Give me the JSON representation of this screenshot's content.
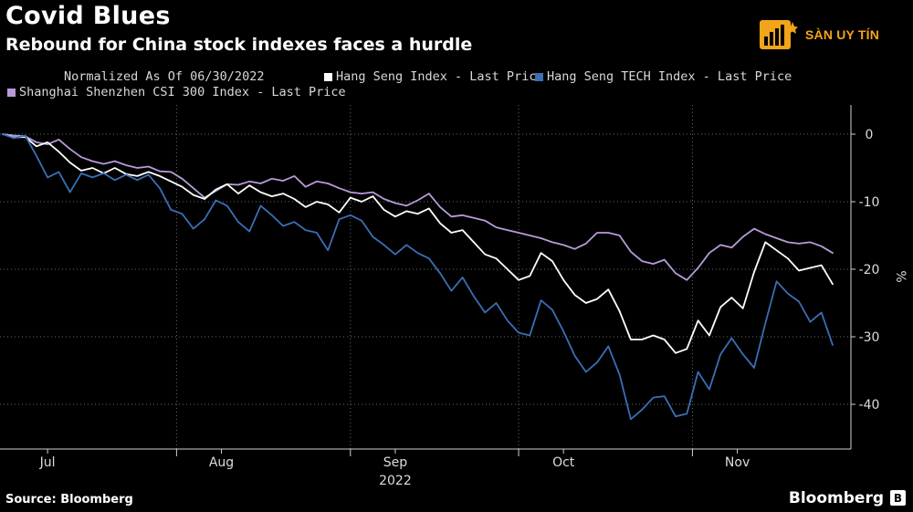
{
  "header": {
    "title": "Covid Blues",
    "subtitle": "Rebound for China stock indexes faces a hurdle"
  },
  "logo": {
    "text": "SÀN UY TÍN"
  },
  "legend": {
    "note": "Normalized As Of 06/30/2022",
    "items": [
      {
        "label": "Hang Seng Index - Last Price",
        "color": "#ffffff"
      },
      {
        "label": "Hang Seng TECH Index - Last Price",
        "color": "#3a6fb5"
      },
      {
        "label": "Shanghai Shenzhen CSI 300 Index - Last Price",
        "color": "#b79bd9"
      }
    ]
  },
  "footer": {
    "source": "Source: Bloomberg",
    "brand": "Bloomberg",
    "icon_glyph": "B"
  },
  "chart_data": {
    "type": "line",
    "x_range": [
      "2022-06-30",
      "2022-11-25"
    ],
    "x_ticks": [
      {
        "date": "2022-07-08",
        "label": "Jul"
      },
      {
        "date": "2022-08-08",
        "label": "Aug"
      },
      {
        "date": "2022-09-08",
        "label": "Sep"
      },
      {
        "date": "2022-10-08",
        "label": "Oct"
      },
      {
        "date": "2022-11-08",
        "label": "Nov"
      }
    ],
    "x_sublabel": "2022",
    "x_sublabel_date": "2022-09-08",
    "month_boundaries": [
      "2022-07-31",
      "2022-08-31",
      "2022-09-30",
      "2022-10-31"
    ],
    "ylabel": "%",
    "ylim": [
      -46,
      4
    ],
    "yticks": [
      0,
      -10,
      -20,
      -30,
      -40
    ],
    "grid": true,
    "series": [
      {
        "name": "Shanghai Shenzhen CSI 300 Index - Last Price",
        "color": "#b79bd9",
        "points": [
          [
            "2022-06-30",
            0
          ],
          [
            "2022-07-02",
            -0.2
          ],
          [
            "2022-07-04",
            -0.3
          ],
          [
            "2022-07-06",
            -1.2
          ],
          [
            "2022-07-08",
            -1.5
          ],
          [
            "2022-07-10",
            -0.8
          ],
          [
            "2022-07-12",
            -2.2
          ],
          [
            "2022-07-14",
            -3.4
          ],
          [
            "2022-07-16",
            -4.0
          ],
          [
            "2022-07-18",
            -4.4
          ],
          [
            "2022-07-20",
            -4.0
          ],
          [
            "2022-07-22",
            -4.6
          ],
          [
            "2022-07-24",
            -5.0
          ],
          [
            "2022-07-26",
            -4.8
          ],
          [
            "2022-07-28",
            -5.5
          ],
          [
            "2022-07-30",
            -5.6
          ],
          [
            "2022-08-01",
            -6.6
          ],
          [
            "2022-08-03",
            -8.0
          ],
          [
            "2022-08-05",
            -9.4
          ],
          [
            "2022-08-07",
            -8.4
          ],
          [
            "2022-08-09",
            -7.4
          ],
          [
            "2022-08-11",
            -7.5
          ],
          [
            "2022-08-13",
            -7.0
          ],
          [
            "2022-08-15",
            -7.3
          ],
          [
            "2022-08-17",
            -6.6
          ],
          [
            "2022-08-19",
            -6.9
          ],
          [
            "2022-08-21",
            -6.2
          ],
          [
            "2022-08-23",
            -7.8
          ],
          [
            "2022-08-25",
            -7.0
          ],
          [
            "2022-08-27",
            -7.3
          ],
          [
            "2022-08-29",
            -8.0
          ],
          [
            "2022-08-31",
            -8.6
          ],
          [
            "2022-09-02",
            -8.8
          ],
          [
            "2022-09-04",
            -8.6
          ],
          [
            "2022-09-06",
            -9.6
          ],
          [
            "2022-09-08",
            -10.2
          ],
          [
            "2022-09-10",
            -10.6
          ],
          [
            "2022-09-12",
            -9.8
          ],
          [
            "2022-09-14",
            -8.8
          ],
          [
            "2022-09-16",
            -10.8
          ],
          [
            "2022-09-18",
            -12.2
          ],
          [
            "2022-09-20",
            -12.0
          ],
          [
            "2022-09-22",
            -12.4
          ],
          [
            "2022-09-24",
            -12.8
          ],
          [
            "2022-09-26",
            -13.8
          ],
          [
            "2022-09-28",
            -14.2
          ],
          [
            "2022-09-30",
            -14.6
          ],
          [
            "2022-10-02",
            -15.0
          ],
          [
            "2022-10-04",
            -15.4
          ],
          [
            "2022-10-06",
            -16.0
          ],
          [
            "2022-10-08",
            -16.4
          ],
          [
            "2022-10-10",
            -17.0
          ],
          [
            "2022-10-12",
            -16.2
          ],
          [
            "2022-10-14",
            -14.6
          ],
          [
            "2022-10-16",
            -14.6
          ],
          [
            "2022-10-18",
            -15.0
          ],
          [
            "2022-10-20",
            -17.4
          ],
          [
            "2022-10-22",
            -18.8
          ],
          [
            "2022-10-24",
            -19.2
          ],
          [
            "2022-10-26",
            -18.6
          ],
          [
            "2022-10-28",
            -20.6
          ],
          [
            "2022-10-30",
            -21.6
          ],
          [
            "2022-11-01",
            -19.8
          ],
          [
            "2022-11-03",
            -17.6
          ],
          [
            "2022-11-05",
            -16.4
          ],
          [
            "2022-11-07",
            -16.8
          ],
          [
            "2022-11-09",
            -15.2
          ],
          [
            "2022-11-11",
            -14.0
          ],
          [
            "2022-11-13",
            -14.8
          ],
          [
            "2022-11-15",
            -15.4
          ],
          [
            "2022-11-17",
            -16.0
          ],
          [
            "2022-11-19",
            -16.2
          ],
          [
            "2022-11-21",
            -16.0
          ],
          [
            "2022-11-23",
            -16.6
          ],
          [
            "2022-11-25",
            -17.6
          ]
        ]
      },
      {
        "name": "Hang Seng Index - Last Price",
        "color": "#ffffff",
        "points": [
          [
            "2022-06-30",
            0
          ],
          [
            "2022-07-02",
            -0.5
          ],
          [
            "2022-07-04",
            -0.4
          ],
          [
            "2022-07-06",
            -1.8
          ],
          [
            "2022-07-08",
            -1.2
          ],
          [
            "2022-07-10",
            -2.6
          ],
          [
            "2022-07-12",
            -4.2
          ],
          [
            "2022-07-14",
            -5.4
          ],
          [
            "2022-07-16",
            -5.0
          ],
          [
            "2022-07-18",
            -5.8
          ],
          [
            "2022-07-20",
            -5.0
          ],
          [
            "2022-07-22",
            -5.9
          ],
          [
            "2022-07-24",
            -6.2
          ],
          [
            "2022-07-26",
            -5.6
          ],
          [
            "2022-07-28",
            -6.2
          ],
          [
            "2022-07-30",
            -7.0
          ],
          [
            "2022-08-01",
            -7.8
          ],
          [
            "2022-08-03",
            -9.0
          ],
          [
            "2022-08-05",
            -9.6
          ],
          [
            "2022-08-07",
            -8.2
          ],
          [
            "2022-08-09",
            -7.4
          ],
          [
            "2022-08-11",
            -8.8
          ],
          [
            "2022-08-13",
            -7.6
          ],
          [
            "2022-08-15",
            -8.6
          ],
          [
            "2022-08-17",
            -9.2
          ],
          [
            "2022-08-19",
            -8.8
          ],
          [
            "2022-08-21",
            -9.6
          ],
          [
            "2022-08-23",
            -10.8
          ],
          [
            "2022-08-25",
            -10.0
          ],
          [
            "2022-08-27",
            -10.4
          ],
          [
            "2022-08-29",
            -11.6
          ],
          [
            "2022-08-31",
            -9.4
          ],
          [
            "2022-09-02",
            -10.0
          ],
          [
            "2022-09-04",
            -9.2
          ],
          [
            "2022-09-06",
            -11.2
          ],
          [
            "2022-09-08",
            -12.2
          ],
          [
            "2022-09-10",
            -11.4
          ],
          [
            "2022-09-12",
            -11.8
          ],
          [
            "2022-09-14",
            -11.0
          ],
          [
            "2022-09-16",
            -13.2
          ],
          [
            "2022-09-18",
            -14.6
          ],
          [
            "2022-09-20",
            -14.2
          ],
          [
            "2022-09-22",
            -16.0
          ],
          [
            "2022-09-24",
            -17.8
          ],
          [
            "2022-09-26",
            -18.4
          ],
          [
            "2022-09-28",
            -20.0
          ],
          [
            "2022-09-30",
            -21.6
          ],
          [
            "2022-10-02",
            -21.0
          ],
          [
            "2022-10-04",
            -17.6
          ],
          [
            "2022-10-06",
            -18.8
          ],
          [
            "2022-10-08",
            -21.6
          ],
          [
            "2022-10-10",
            -23.8
          ],
          [
            "2022-10-12",
            -25.0
          ],
          [
            "2022-10-14",
            -24.4
          ],
          [
            "2022-10-16",
            -23.0
          ],
          [
            "2022-10-18",
            -26.2
          ],
          [
            "2022-10-20",
            -30.4
          ],
          [
            "2022-10-22",
            -30.4
          ],
          [
            "2022-10-24",
            -29.8
          ],
          [
            "2022-10-26",
            -30.4
          ],
          [
            "2022-10-28",
            -32.4
          ],
          [
            "2022-10-30",
            -31.8
          ],
          [
            "2022-11-01",
            -27.6
          ],
          [
            "2022-11-03",
            -29.8
          ],
          [
            "2022-11-05",
            -25.6
          ],
          [
            "2022-11-07",
            -24.2
          ],
          [
            "2022-11-09",
            -25.8
          ],
          [
            "2022-11-11",
            -20.4
          ],
          [
            "2022-11-13",
            -16.0
          ],
          [
            "2022-11-15",
            -17.2
          ],
          [
            "2022-11-17",
            -18.4
          ],
          [
            "2022-11-19",
            -20.2
          ],
          [
            "2022-11-21",
            -19.8
          ],
          [
            "2022-11-23",
            -19.4
          ],
          [
            "2022-11-25",
            -22.2
          ]
        ]
      },
      {
        "name": "Hang Seng TECH Index - Last Price",
        "color": "#3a6fb5",
        "points": [
          [
            "2022-06-30",
            0
          ],
          [
            "2022-07-02",
            -0.6
          ],
          [
            "2022-07-04",
            -0.2
          ],
          [
            "2022-07-06",
            -3.2
          ],
          [
            "2022-07-08",
            -6.4
          ],
          [
            "2022-07-10",
            -5.6
          ],
          [
            "2022-07-12",
            -8.6
          ],
          [
            "2022-07-14",
            -5.8
          ],
          [
            "2022-07-16",
            -6.4
          ],
          [
            "2022-07-18",
            -5.8
          ],
          [
            "2022-07-20",
            -6.8
          ],
          [
            "2022-07-22",
            -6.0
          ],
          [
            "2022-07-24",
            -6.8
          ],
          [
            "2022-07-26",
            -6.0
          ],
          [
            "2022-07-28",
            -8.0
          ],
          [
            "2022-07-30",
            -11.2
          ],
          [
            "2022-08-01",
            -11.8
          ],
          [
            "2022-08-03",
            -14.0
          ],
          [
            "2022-08-05",
            -12.6
          ],
          [
            "2022-08-07",
            -9.8
          ],
          [
            "2022-08-09",
            -10.6
          ],
          [
            "2022-08-11",
            -13.0
          ],
          [
            "2022-08-13",
            -14.4
          ],
          [
            "2022-08-15",
            -10.6
          ],
          [
            "2022-08-17",
            -12.0
          ],
          [
            "2022-08-19",
            -13.6
          ],
          [
            "2022-08-21",
            -13.0
          ],
          [
            "2022-08-23",
            -14.2
          ],
          [
            "2022-08-25",
            -14.6
          ],
          [
            "2022-08-27",
            -17.2
          ],
          [
            "2022-08-29",
            -12.6
          ],
          [
            "2022-08-31",
            -12.0
          ],
          [
            "2022-09-02",
            -12.8
          ],
          [
            "2022-09-04",
            -15.2
          ],
          [
            "2022-09-06",
            -16.4
          ],
          [
            "2022-09-08",
            -17.8
          ],
          [
            "2022-09-10",
            -16.4
          ],
          [
            "2022-09-12",
            -17.6
          ],
          [
            "2022-09-14",
            -18.4
          ],
          [
            "2022-09-16",
            -20.6
          ],
          [
            "2022-09-18",
            -23.2
          ],
          [
            "2022-09-20",
            -21.2
          ],
          [
            "2022-09-22",
            -24.0
          ],
          [
            "2022-09-24",
            -26.4
          ],
          [
            "2022-09-26",
            -25.0
          ],
          [
            "2022-09-28",
            -27.6
          ],
          [
            "2022-09-30",
            -29.4
          ],
          [
            "2022-10-02",
            -29.8
          ],
          [
            "2022-10-04",
            -24.6
          ],
          [
            "2022-10-06",
            -26.0
          ],
          [
            "2022-10-08",
            -29.2
          ],
          [
            "2022-10-10",
            -32.8
          ],
          [
            "2022-10-12",
            -35.2
          ],
          [
            "2022-10-14",
            -33.8
          ],
          [
            "2022-10-16",
            -31.4
          ],
          [
            "2022-10-18",
            -35.6
          ],
          [
            "2022-10-20",
            -42.2
          ],
          [
            "2022-10-22",
            -40.8
          ],
          [
            "2022-10-24",
            -39.0
          ],
          [
            "2022-10-26",
            -38.8
          ],
          [
            "2022-10-28",
            -41.8
          ],
          [
            "2022-10-30",
            -41.4
          ],
          [
            "2022-11-01",
            -35.2
          ],
          [
            "2022-11-03",
            -37.8
          ],
          [
            "2022-11-05",
            -32.6
          ],
          [
            "2022-11-07",
            -30.2
          ],
          [
            "2022-11-09",
            -32.6
          ],
          [
            "2022-11-11",
            -34.6
          ],
          [
            "2022-11-13",
            -28.0
          ],
          [
            "2022-11-15",
            -21.8
          ],
          [
            "2022-11-17",
            -23.6
          ],
          [
            "2022-11-19",
            -24.8
          ],
          [
            "2022-11-21",
            -27.8
          ],
          [
            "2022-11-23",
            -26.4
          ],
          [
            "2022-11-25",
            -31.2
          ]
        ]
      }
    ]
  }
}
